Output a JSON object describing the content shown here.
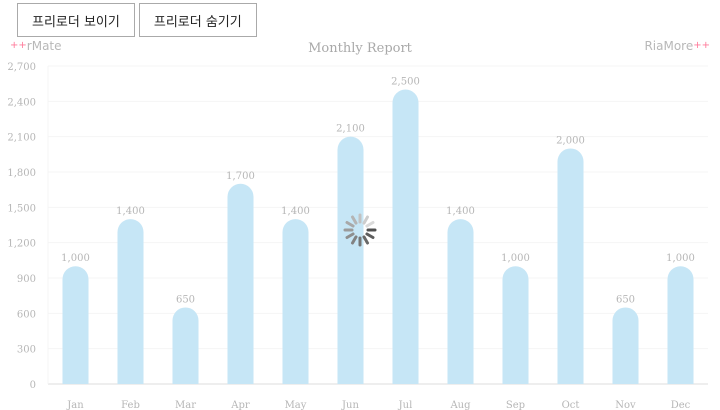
{
  "toolbar": {
    "show_preloader_label": "프리로더 보이기",
    "hide_preloader_label": "프리로더 숨기기"
  },
  "logos": {
    "left": "rMate",
    "right": "RiaMore",
    "plus": "+"
  },
  "colors": {
    "bar": "#c6e6f6",
    "grid": "#f4f4f4",
    "axis": "#dddddd",
    "text": "#b6b6b6",
    "accent_plus": "#ff7a9a"
  },
  "chart_data": {
    "type": "bar",
    "title": "Monthly Report",
    "xlabel": "",
    "ylabel": "",
    "categories": [
      "Jan",
      "Feb",
      "Mar",
      "Apr",
      "May",
      "Jun",
      "Jul",
      "Aug",
      "Sep",
      "Oct",
      "Nov",
      "Dec"
    ],
    "values": [
      1000,
      1400,
      650,
      1700,
      1400,
      2100,
      2500,
      1400,
      1000,
      2000,
      650,
      1000
    ],
    "value_labels": [
      "1,000",
      "1,400",
      "650",
      "1,700",
      "1,400",
      "2,100",
      "2,500",
      "1,400",
      "1,000",
      "2,000",
      "650",
      "1,000"
    ],
    "ylim": [
      0,
      2700
    ],
    "y_ticks": [
      0,
      300,
      600,
      900,
      1200,
      1500,
      1800,
      2100,
      2400,
      2700
    ],
    "y_tick_labels": [
      "0",
      "300",
      "600",
      "900",
      "1,200",
      "1,500",
      "1,800",
      "2,100",
      "2,400",
      "2,700"
    ],
    "grid": true,
    "legend": "none",
    "loading_spinner": true
  }
}
